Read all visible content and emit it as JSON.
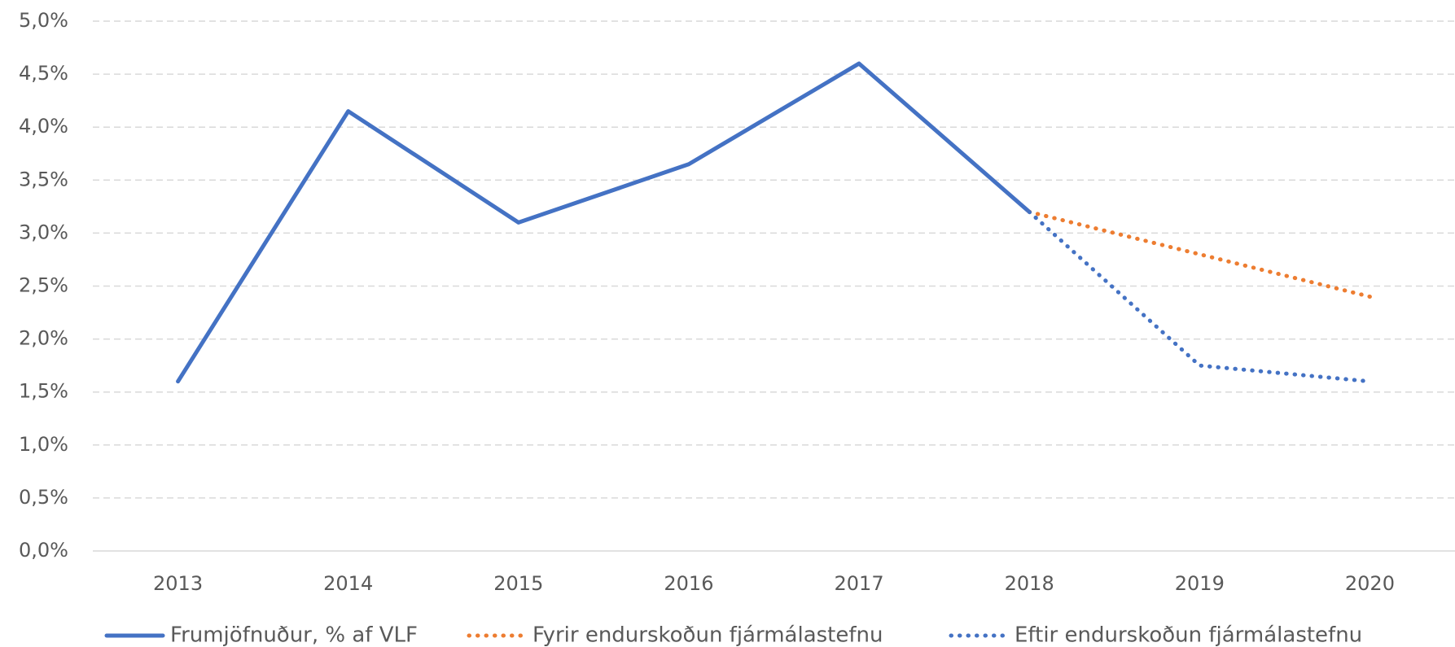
{
  "chart_data": {
    "type": "line",
    "categories": [
      "2013",
      "2014",
      "2015",
      "2016",
      "2017",
      "2018",
      "2019",
      "2020"
    ],
    "series": [
      {
        "name": "Frumjöfnuður, % af VLF",
        "color": "#4472c4",
        "dotted": false,
        "values": [
          1.6,
          4.15,
          3.1,
          3.65,
          4.6,
          3.2,
          null,
          null
        ]
      },
      {
        "name": "Fyrir endurskoðun fjármálastefnu",
        "color": "#ed7d31",
        "dotted": true,
        "values": [
          null,
          null,
          null,
          null,
          null,
          3.2,
          2.8,
          2.4
        ]
      },
      {
        "name": "Eftir endurskoðun fjármálastefnu",
        "color": "#4472c4",
        "dotted": true,
        "values": [
          null,
          null,
          null,
          null,
          null,
          3.2,
          1.75,
          1.6
        ]
      }
    ],
    "ylim": [
      0,
      5
    ],
    "yticks": [
      {
        "value": 0,
        "label": "0,0%"
      },
      {
        "value": 0.5,
        "label": "0,5%"
      },
      {
        "value": 1,
        "label": "1,0%"
      },
      {
        "value": 1.5,
        "label": "1,5%"
      },
      {
        "value": 2,
        "label": "2,0%"
      },
      {
        "value": 2.5,
        "label": "2,5%"
      },
      {
        "value": 3,
        "label": "3,0%"
      },
      {
        "value": 3.5,
        "label": "3,5%"
      },
      {
        "value": 4,
        "label": "4,0%"
      },
      {
        "value": 4.5,
        "label": "4,5%"
      },
      {
        "value": 5,
        "label": "5,0%"
      }
    ],
    "grid": true,
    "legend": "bottom"
  }
}
